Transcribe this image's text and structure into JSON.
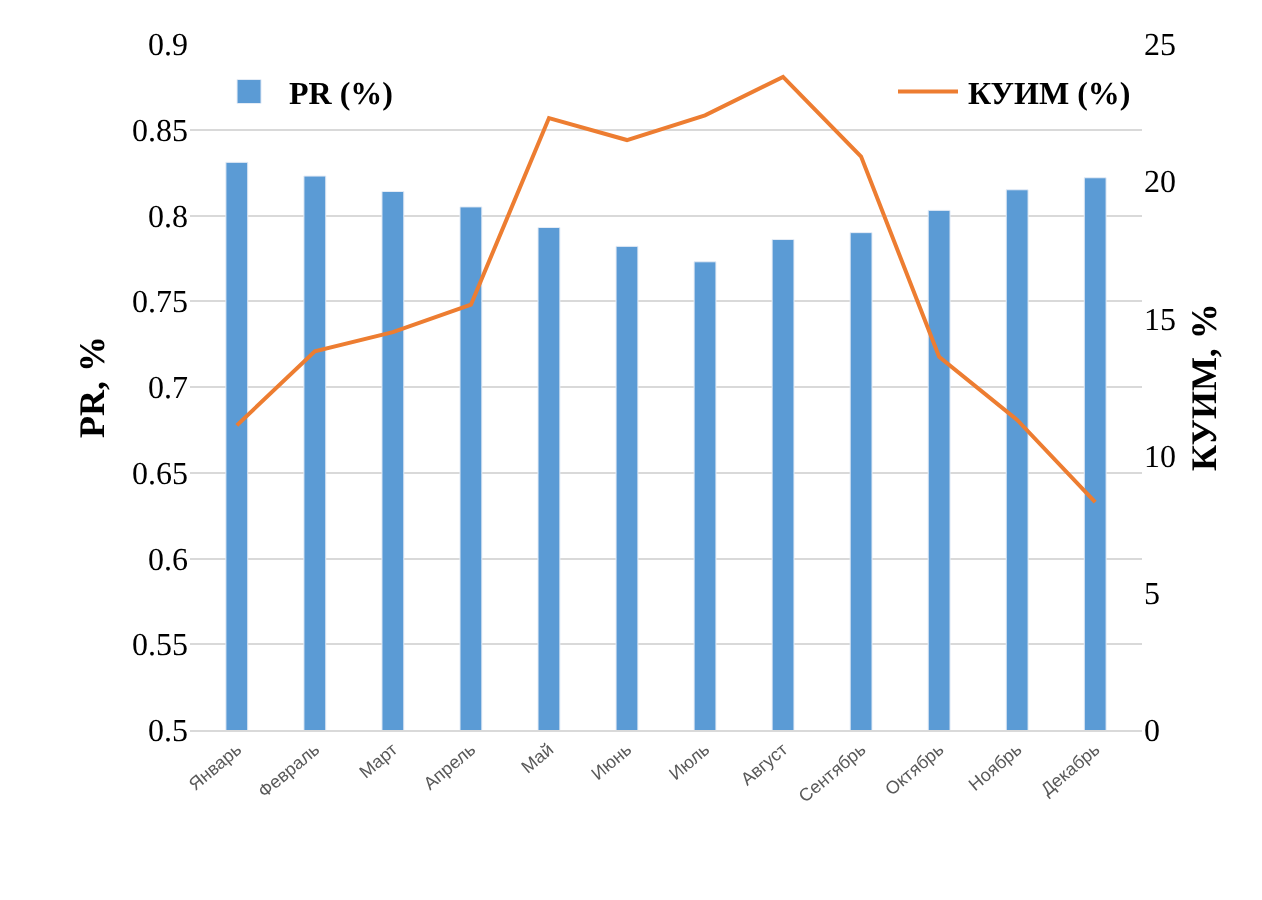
{
  "chart_data": {
    "type": "bar",
    "ylabel": "PR, %",
    "y2label": "КУИМ, %",
    "categories": [
      "Январь",
      "Февраль",
      "Март",
      "Апрель",
      "Май",
      "Июнь",
      "Июль",
      "Август",
      "Сентябрь",
      "Октябрь",
      "Ноябрь",
      "Декабрь"
    ],
    "series": [
      {
        "name": "PR (%)",
        "color": "#5b9bd5",
        "values": [
          0.831,
          0.823,
          0.814,
          0.805,
          0.793,
          0.782,
          0.773,
          0.786,
          0.79,
          0.803,
          0.815,
          0.822
        ]
      },
      {
        "name": "КУИМ (%)",
        "type": "line",
        "axis": "y2",
        "color": "#ed7d31",
        "values": [
          11.1,
          13.8,
          14.5,
          15.5,
          22.3,
          21.5,
          22.4,
          23.8,
          20.9,
          13.6,
          11.3,
          8.3
        ]
      }
    ],
    "ylim": [
      0.5,
      0.9
    ],
    "yticks": [
      0.5,
      0.55,
      0.6,
      0.65,
      0.7,
      0.75,
      0.8,
      0.85,
      0.9
    ],
    "y2lim": [
      0,
      25
    ],
    "y2ticks": [
      0,
      5,
      10,
      15,
      20,
      25
    ],
    "grid": "y",
    "legend": "top"
  }
}
